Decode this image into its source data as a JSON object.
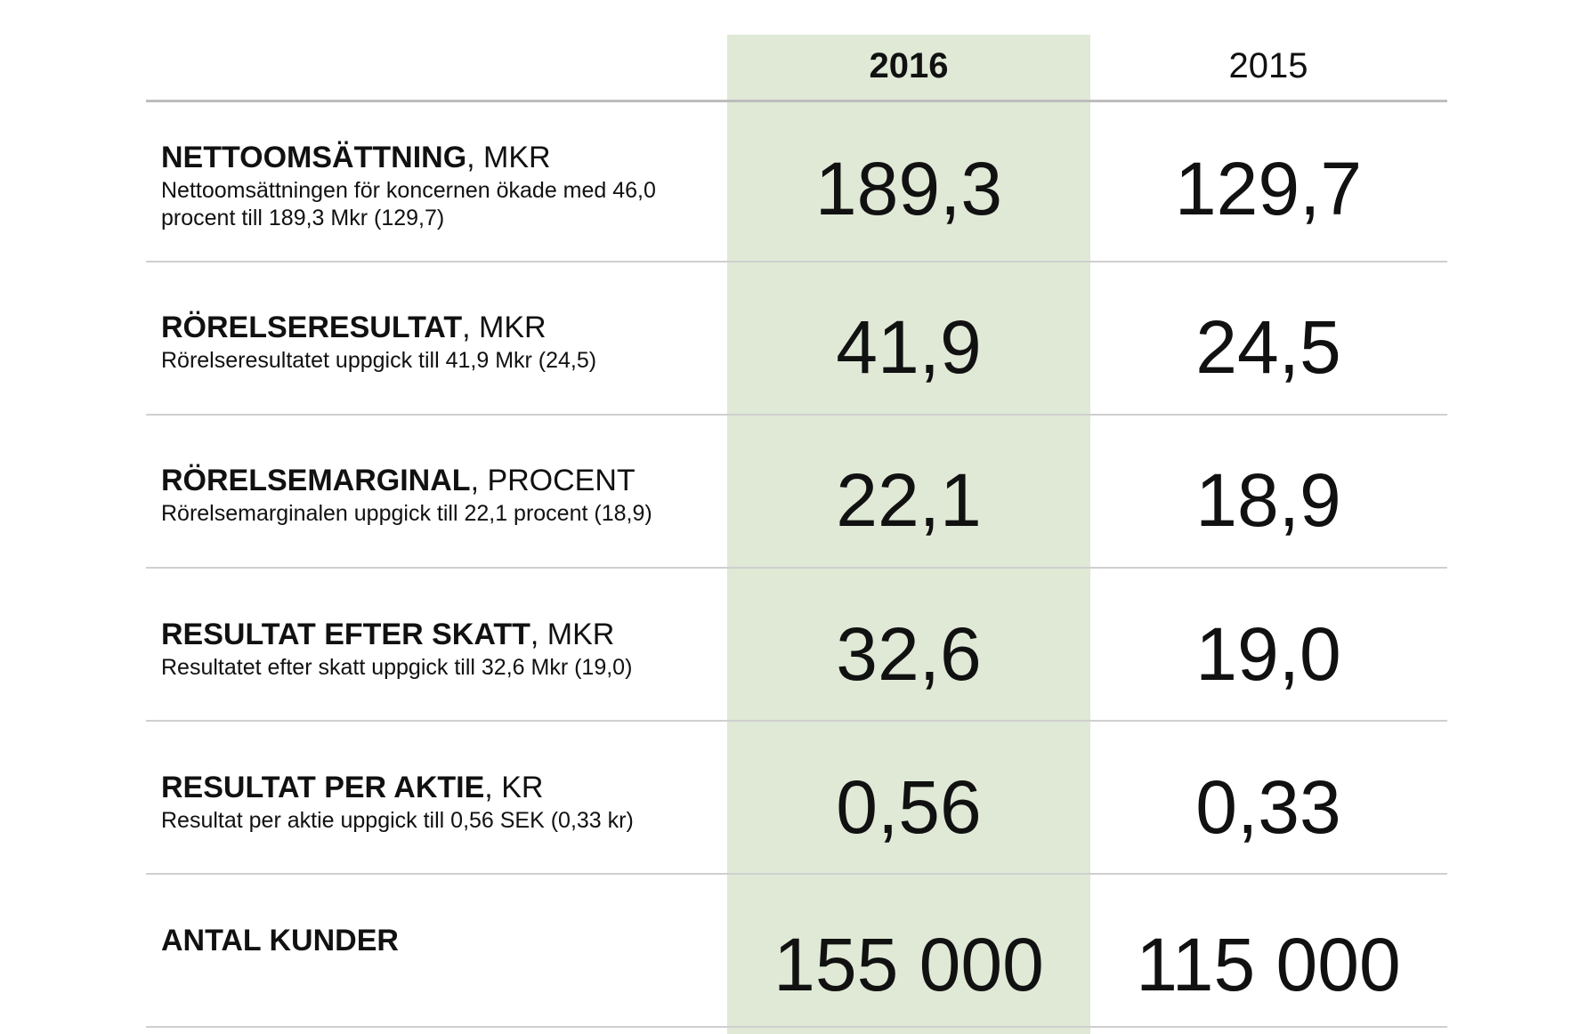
{
  "header": {
    "year_current": "2016",
    "year_previous": "2015"
  },
  "colors": {
    "highlight_column": "#dfe9d6",
    "divider": "#cfcfcf",
    "text": "#111111"
  },
  "rows": [
    {
      "title": "NETTOOMSÄTTNING",
      "unit": ", MKR",
      "description": "Nettoomsättningen för koncernen ökade med 46,0 procent till 189,3 Mkr (129,7)",
      "value_2016": "189,3",
      "value_2015": "129,7"
    },
    {
      "title": "RÖRELSERESULTAT",
      "unit": ", MKR",
      "description": "Rörelseresultatet uppgick till 41,9 Mkr (24,5)",
      "value_2016": "41,9",
      "value_2015": "24,5"
    },
    {
      "title": "RÖRELSEMARGINAL",
      "unit": ", PROCENT",
      "description": "Rörelsemarginalen uppgick till 22,1 procent (18,9)",
      "value_2016": "22,1",
      "value_2015": "18,9"
    },
    {
      "title": "RESULTAT EFTER SKATT",
      "unit": ", MKR",
      "description": "Resultatet efter skatt uppgick till 32,6 Mkr (19,0)",
      "value_2016": "32,6",
      "value_2015": "19,0"
    },
    {
      "title": "RESULTAT PER AKTIE",
      "unit": ", KR",
      "description": "Resultat per aktie uppgick till 0,56 SEK (0,33 kr)",
      "value_2016": "0,56",
      "value_2015": "0,33"
    },
    {
      "title": "ANTAL KUNDER",
      "value_2016": "155 000",
      "value_2015": "115 000"
    }
  ]
}
